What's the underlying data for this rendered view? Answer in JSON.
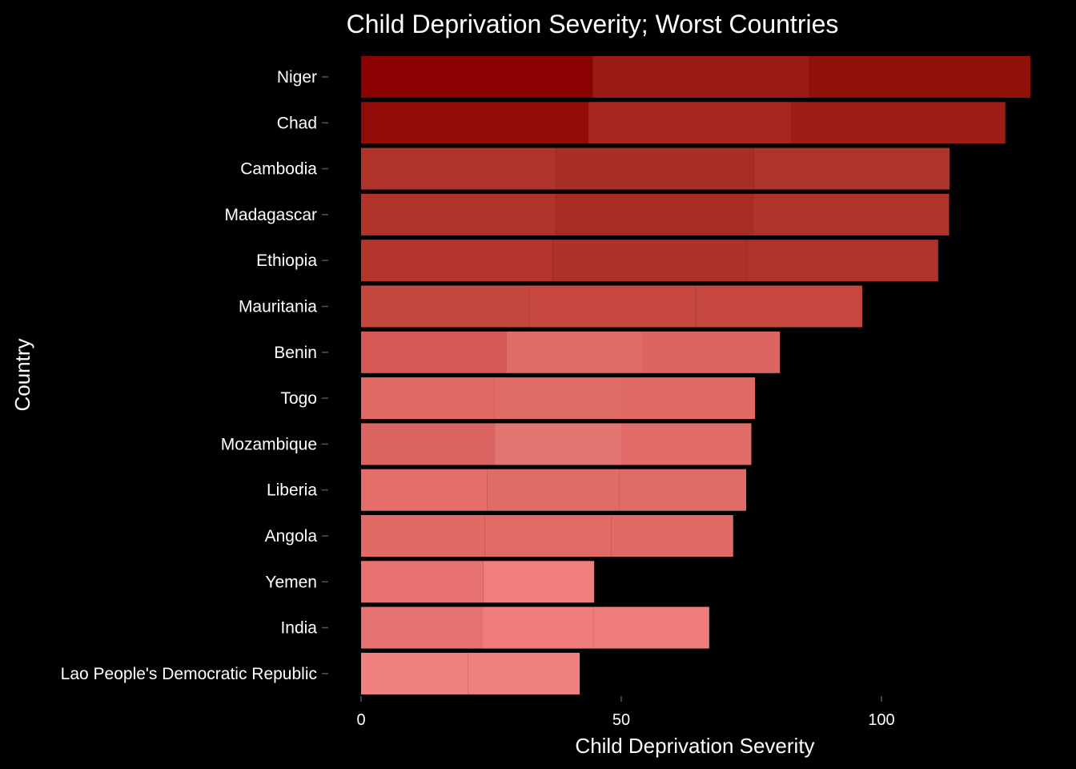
{
  "chart_data": {
    "type": "bar",
    "orientation": "horizontal",
    "stacked": true,
    "title": "Child Deprivation Severity; Worst Countries",
    "xlabel": "Child Deprivation Severity",
    "ylabel": "Country",
    "xlim": [
      0,
      130
    ],
    "xticks": [
      0,
      50,
      100
    ],
    "grid": false,
    "legend": "none",
    "categories": [
      "Niger",
      "Chad",
      "Cambodia",
      "Madagascar",
      "Ethiopia",
      "Mauritania",
      "Benin",
      "Togo",
      "Mozambique",
      "Liberia",
      "Angola",
      "Yemen",
      "India",
      "Lao People's Democratic Republic"
    ],
    "series": [
      {
        "values": [
          44.5,
          43.7,
          37.4,
          37.3,
          36.8,
          32.4,
          28.0,
          25.6,
          25.7,
          24.2,
          23.8,
          23.5,
          23.3,
          20.5
        ],
        "colors": [
          "#8b0000",
          "#920b08",
          "#b0342c",
          "#b0342c",
          "#b3352e",
          "#c4473f",
          "#d55a55",
          "#e06864",
          "#d96460",
          "#e56e6b",
          "#e16a67",
          "#e77270",
          "#e67371",
          "#ef8180"
        ]
      },
      {
        "values": [
          41.5,
          39.0,
          38.1,
          38.1,
          37.3,
          31.8,
          26.0,
          24.7,
          24.3,
          25.4,
          24.3,
          21.3,
          21.3,
          21.5
        ],
        "colors": [
          "#9a1a14",
          "#a5271f",
          "#a82d24",
          "#a72d24",
          "#ad3129",
          "#c8493f",
          "#e16d69",
          "#e06c68",
          "#e27471",
          "#df6d67",
          "#e16b66",
          "#ef7e7c",
          "#ef7d7b",
          "#f08180"
        ]
      },
      {
        "values": [
          42.6,
          41.1,
          37.6,
          37.6,
          36.8,
          32.1,
          26.5,
          25.4,
          25.0,
          24.4,
          23.4,
          0,
          22.3,
          0
        ],
        "colors": [
          "#911008",
          "#9e1d16",
          "#ad332b",
          "#ae342c",
          "#ad332c",
          "#c6473f",
          "#dd6560",
          "#e06a66",
          "#e16b66",
          "#e06c67",
          "#e06a66",
          "#ef7e7c",
          "#ee7c7a",
          "#f08180"
        ]
      }
    ]
  }
}
